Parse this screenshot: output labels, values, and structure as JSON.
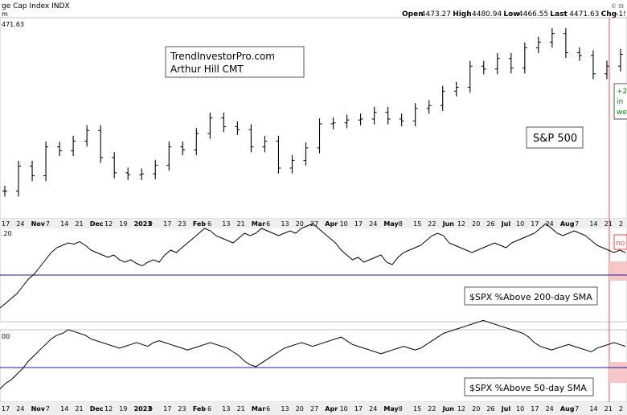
{
  "header": {
    "title": "ge Cap Index",
    "exchange": "INDX",
    "sub": "m",
    "ohlc": [
      "Open",
      "4473.27",
      "High",
      "4480.94",
      "Low",
      "4466.55",
      "Last",
      "4471.63",
      "Chg",
      "-1!"
    ],
    "corner": "© St"
  },
  "colors": {
    "bars": "#000000",
    "zero_line": "#1a1aa0",
    "red_marker": "#ff4444",
    "red_box": "#f7c6c6",
    "green_text": "#0a8a0a",
    "panel_bg": "#ffffff",
    "axis_strip": "#eeeeee"
  },
  "chart_data": [
    {
      "type": "ohlc",
      "title": "S&P 500",
      "price_label": "471.63",
      "annotation_box": [
        "TrendInvestorPro.com",
        "Arthur Hill CMT"
      ],
      "side_note": [
        "+2",
        "in",
        "we"
      ],
      "series": [
        {
          "week": "Oct 17",
          "close": 3760
        },
        {
          "week": "Oct 24",
          "close": 3890
        },
        {
          "week": "Oct 31",
          "close": 3840
        },
        {
          "week": "Nov 7",
          "close": 3990
        },
        {
          "week": "Nov 14",
          "close": 3970
        },
        {
          "week": "Nov 21",
          "close": 4020
        },
        {
          "week": "Nov 28",
          "close": 4075
        },
        {
          "week": "Dec 5",
          "close": 3935
        },
        {
          "week": "Dec 12",
          "close": 3855
        },
        {
          "week": "Dec 19",
          "close": 3845
        },
        {
          "week": "Dec 26",
          "close": 3850
        },
        {
          "week": "Jan 3",
          "close": 3895
        },
        {
          "week": "Jan 9",
          "close": 3990
        },
        {
          "week": "Jan 17",
          "close": 3975
        },
        {
          "week": "Jan 23",
          "close": 4060
        },
        {
          "week": "Jan 30",
          "close": 4140
        },
        {
          "week": "Feb 6",
          "close": 4095
        },
        {
          "week": "Feb 13",
          "close": 4080
        },
        {
          "week": "Feb 21",
          "close": 3990
        },
        {
          "week": "Feb 27",
          "close": 4020
        },
        {
          "week": "Mar 6",
          "close": 3880
        },
        {
          "week": "Mar 13",
          "close": 3920
        },
        {
          "week": "Mar 20",
          "close": 3985
        },
        {
          "week": "Mar 27",
          "close": 4110
        },
        {
          "week": "Apr 3",
          "close": 4115
        },
        {
          "week": "Apr 10",
          "close": 4130
        },
        {
          "week": "Apr 17",
          "close": 4135
        },
        {
          "week": "Apr 24",
          "close": 4170
        },
        {
          "week": "May 1",
          "close": 4135
        },
        {
          "week": "May 8",
          "close": 4125
        },
        {
          "week": "May 15",
          "close": 4190
        },
        {
          "week": "May 22",
          "close": 4205
        },
        {
          "week": "May 30",
          "close": 4280
        },
        {
          "week": "Jun 5",
          "close": 4300
        },
        {
          "week": "Jun 12",
          "close": 4410
        },
        {
          "week": "Jun 20",
          "close": 4395
        },
        {
          "week": "Jun 26",
          "close": 4450
        },
        {
          "week": "Jul 3",
          "close": 4400
        },
        {
          "week": "Jul 10",
          "close": 4505
        },
        {
          "week": "Jul 17",
          "close": 4535
        },
        {
          "week": "Jul 24",
          "close": 4580
        },
        {
          "week": "Jul 31",
          "close": 4480
        },
        {
          "week": "Aug 7",
          "close": 4465
        },
        {
          "week": "Aug 14",
          "close": 4370
        },
        {
          "week": "Aug 21",
          "close": 4410
        },
        {
          "week": "Aug 28",
          "close": 4471.63
        }
      ]
    },
    {
      "type": "line",
      "label": "$SPX %Above 200-day SMA",
      "axis_label": ".20",
      "red_label": "no",
      "values": [
        18,
        22,
        26,
        30,
        36,
        42,
        46,
        52,
        58,
        64,
        68,
        70,
        72,
        71,
        73,
        70,
        66,
        64,
        62,
        60,
        62,
        58,
        56,
        58,
        55,
        53,
        56,
        58,
        56,
        62,
        66,
        64,
        68,
        72,
        76,
        80,
        84,
        82,
        78,
        76,
        74,
        72,
        76,
        80,
        78,
        80,
        84,
        82,
        80,
        78,
        80,
        82,
        80,
        84,
        86,
        88,
        84,
        80,
        76,
        72,
        66,
        62,
        58,
        60,
        56,
        58,
        60,
        62,
        56,
        54,
        60,
        64,
        66,
        68,
        70,
        74,
        78,
        80,
        78,
        72,
        70,
        68,
        66,
        64,
        66,
        68,
        70,
        72,
        70,
        68,
        72,
        74,
        76,
        78,
        80,
        84,
        88,
        84,
        80,
        78,
        80,
        82,
        80,
        78,
        74,
        70,
        68,
        66,
        64,
        66,
        64
      ]
    },
    {
      "type": "line",
      "label": "$SPX %Above 50-day SMA",
      "axis_label": "00",
      "values": [
        10,
        16,
        20,
        26,
        32,
        40,
        46,
        52,
        58,
        64,
        68,
        70,
        74,
        72,
        70,
        68,
        64,
        62,
        60,
        58,
        56,
        54,
        56,
        58,
        60,
        58,
        56,
        60,
        62,
        60,
        58,
        56,
        54,
        52,
        54,
        56,
        58,
        60,
        58,
        56,
        54,
        50,
        46,
        40,
        36,
        34,
        38,
        42,
        46,
        50,
        54,
        56,
        58,
        60,
        58,
        56,
        58,
        60,
        62,
        64,
        66,
        62,
        58,
        56,
        54,
        52,
        50,
        48,
        50,
        52,
        54,
        56,
        54,
        52,
        54,
        58,
        62,
        66,
        70,
        72,
        74,
        76,
        78,
        80,
        82,
        84,
        82,
        80,
        78,
        76,
        74,
        72,
        70,
        66,
        60,
        56,
        54,
        52,
        54,
        56,
        58,
        56,
        54,
        52,
        50,
        54,
        56,
        58,
        60,
        58,
        56
      ]
    }
  ],
  "x_axis": {
    "ticks": [
      "17",
      "24",
      "Nov",
      "7",
      "14",
      "21",
      "Dec",
      "12",
      "19",
      "2023",
      "9",
      "17",
      "23",
      "Feb",
      "6",
      "13",
      "21",
      "Mar",
      "6",
      "13",
      "20",
      "27",
      "Apr",
      "10",
      "17",
      "24",
      "May",
      "8",
      "15",
      "22",
      "Jun",
      "12",
      "20",
      "26",
      "Jul",
      "10",
      "17",
      "24",
      "Aug",
      "7",
      "14",
      "21",
      "2"
    ],
    "bold": [
      "Nov",
      "Dec",
      "2023",
      "Feb",
      "Mar",
      "Apr",
      "May",
      "Jun",
      "Jul",
      "Aug"
    ]
  }
}
